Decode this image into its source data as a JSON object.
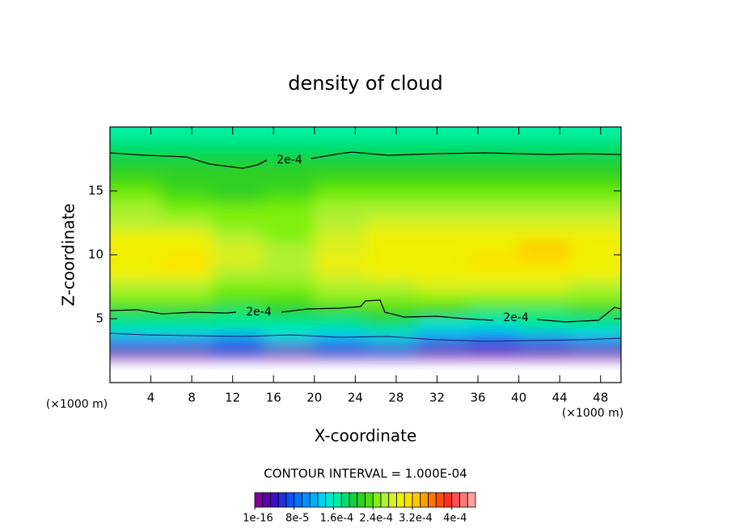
{
  "chart_data": {
    "type": "contour",
    "title": "density of cloud",
    "xlabel": "X-coordinate",
    "ylabel": "Z-coordinate",
    "xunit": "(×1000 m)",
    "yunit": "(×1000 m)",
    "xlim": [
      0,
      50
    ],
    "ylim": [
      0,
      20
    ],
    "xticks": [
      4,
      8,
      12,
      16,
      20,
      24,
      28,
      32,
      36,
      40,
      44,
      48
    ],
    "yticks": [
      5,
      10,
      15
    ],
    "contour_interval": "CONTOUR INTERVAL = 1.000E-04",
    "contour_level": {
      "value": 0.0002,
      "label": "2e-4"
    },
    "field": {
      "x": [
        2.5,
        7.5,
        12.5,
        17.5,
        22.5,
        27.5,
        32.5,
        37.5,
        42.5,
        47.5
      ],
      "z": [
        2.5,
        3.5,
        4.5,
        5.5,
        6.5,
        7.5,
        8.5,
        9.5,
        10.5,
        11.5,
        12.5,
        13.5,
        14.5,
        15.5,
        16.5,
        17.5,
        18.5,
        19.5
      ],
      "values": [
        [
          3e-05,
          3e-05,
          4e-05,
          3e-05,
          4e-05,
          4e-05,
          3e-05,
          2e-05,
          2e-05,
          3e-05
        ],
        [
          0.00012,
          0.00012,
          0.00011,
          0.00013,
          0.00012,
          0.00013,
          0.0001,
          8e-05,
          0.0001,
          0.00012
        ],
        [
          0.00017,
          0.00017,
          0.00016,
          0.00017,
          0.00017,
          0.00018,
          0.00015,
          0.00015,
          0.00016,
          0.00017
        ],
        [
          0.0002,
          0.0002,
          0.00019,
          0.0002,
          0.0002,
          0.00021,
          0.00021,
          0.00019,
          0.00019,
          0.0002
        ],
        [
          0.00024,
          0.00024,
          0.00023,
          0.00023,
          0.00024,
          0.00025,
          0.00025,
          0.00024,
          0.00024,
          0.00024
        ],
        [
          0.00027,
          0.00027,
          0.00025,
          0.00025,
          0.00026,
          0.00027,
          0.00028,
          0.00028,
          0.00028,
          0.00027
        ],
        [
          0.00029,
          0.0003,
          0.00027,
          0.00026,
          0.00028,
          0.00029,
          0.0003,
          0.0003,
          0.0003,
          0.00029
        ],
        [
          0.0003,
          0.00031,
          0.00028,
          0.00026,
          0.00029,
          0.0003,
          0.0003,
          0.00031,
          0.00031,
          0.0003
        ],
        [
          0.0003,
          0.0003,
          0.00028,
          0.00026,
          0.00028,
          0.0003,
          0.0003,
          0.0003,
          0.00032,
          0.0003
        ],
        [
          0.00029,
          0.00029,
          0.00027,
          0.00025,
          0.00028,
          0.00029,
          0.00029,
          0.00029,
          0.0003,
          0.00029
        ],
        [
          0.00027,
          0.00027,
          0.00025,
          0.00025,
          0.00027,
          0.00028,
          0.00028,
          0.00028,
          0.00028,
          0.00028
        ],
        [
          0.00026,
          0.00025,
          0.00024,
          0.00024,
          0.00026,
          0.00026,
          0.00026,
          0.00026,
          0.00026,
          0.00026
        ],
        [
          0.00024,
          0.00023,
          0.00022,
          0.00023,
          0.00024,
          0.00024,
          0.00024,
          0.00024,
          0.00024,
          0.00024
        ],
        [
          0.00023,
          0.00022,
          0.00021,
          0.00022,
          0.00023,
          0.00023,
          0.00023,
          0.00023,
          0.00023,
          0.00023
        ],
        [
          0.00022,
          0.00021,
          0.00021,
          0.00021,
          0.00022,
          0.00022,
          0.00022,
          0.00022,
          0.00022,
          0.00022
        ],
        [
          0.0002,
          0.0002,
          0.0002,
          0.0002,
          0.0002,
          0.0002,
          0.0002,
          0.0002,
          0.0002,
          0.0002
        ],
        [
          0.00018,
          0.00018,
          0.00018,
          0.00018,
          0.00018,
          0.00018,
          0.00018,
          0.00018,
          0.00018,
          0.00018
        ],
        [
          0.00017,
          0.00017,
          0.00017,
          0.00017,
          0.00017,
          0.00017,
          0.00017,
          0.00017,
          0.00017,
          0.00017
        ]
      ]
    },
    "colorbar": {
      "lim": [
        0,
        0.000448
      ],
      "colors": [
        "#80009a",
        "#5c00b0",
        "#3a10c8",
        "#2030e0",
        "#1050f0",
        "#0070ff",
        "#0090ff",
        "#00b0ff",
        "#00d0f0",
        "#00e8d0",
        "#00f0a0",
        "#00e070",
        "#10d040",
        "#30d020",
        "#50e010",
        "#80f010",
        "#b0f030",
        "#d8f020",
        "#f0f000",
        "#ffe000",
        "#ffc800",
        "#ffa000",
        "#ff7800",
        "#ff5000",
        "#ff3020",
        "#ff5050",
        "#ff7878",
        "#ffa0a0"
      ],
      "ticks": [
        {
          "value": 1e-16,
          "label": "1e-16"
        },
        {
          "value": 8e-05,
          "label": "8e-5"
        },
        {
          "value": 0.00016,
          "label": "1.6e-4"
        },
        {
          "value": 0.00024,
          "label": "2.4e-4"
        },
        {
          "value": 0.00032,
          "label": "3.2e-4"
        },
        {
          "value": 0.0004,
          "label": "4e-4"
        }
      ]
    }
  }
}
